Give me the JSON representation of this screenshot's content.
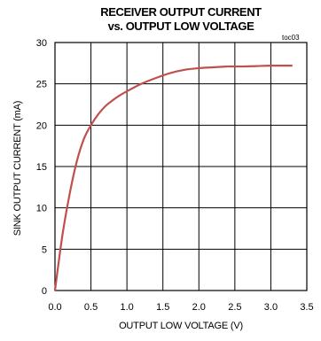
{
  "chart_data": {
    "type": "line",
    "title_line1": "RECEIVER OUTPUT CURRENT",
    "title_line2": "vs. OUTPUT LOW VOLTAGE",
    "tag": "toc03",
    "xlabel": "OUTPUT LOW VOLTAGE (V)",
    "ylabel": "SINK OUTPUT CURRENT (mA)",
    "xlim": [
      0,
      3.5
    ],
    "ylim": [
      0,
      30
    ],
    "xticks": [
      "0.0",
      "0.5",
      "1.0",
      "1.5",
      "2.0",
      "2.5",
      "3.0",
      "3.5"
    ],
    "yticks": [
      "0",
      "5",
      "10",
      "15",
      "20",
      "25",
      "30"
    ],
    "grid": true,
    "line_color": "#c0504d",
    "series": [
      {
        "x": [
          0,
          0.1,
          0.2,
          0.3,
          0.4,
          0.5,
          0.6,
          0.7,
          0.8,
          0.9,
          1.0,
          1.2,
          1.4,
          1.6,
          1.8,
          2.0,
          2.2,
          2.4,
          2.6,
          2.8,
          3.0,
          3.2,
          3.3
        ],
        "y": [
          0,
          6.5,
          11.5,
          15.5,
          18.3,
          20.0,
          21.3,
          22.3,
          23.0,
          23.6,
          24.1,
          25.0,
          25.7,
          26.3,
          26.7,
          26.9,
          27.0,
          27.1,
          27.1,
          27.15,
          27.2,
          27.2,
          27.2
        ]
      }
    ]
  }
}
